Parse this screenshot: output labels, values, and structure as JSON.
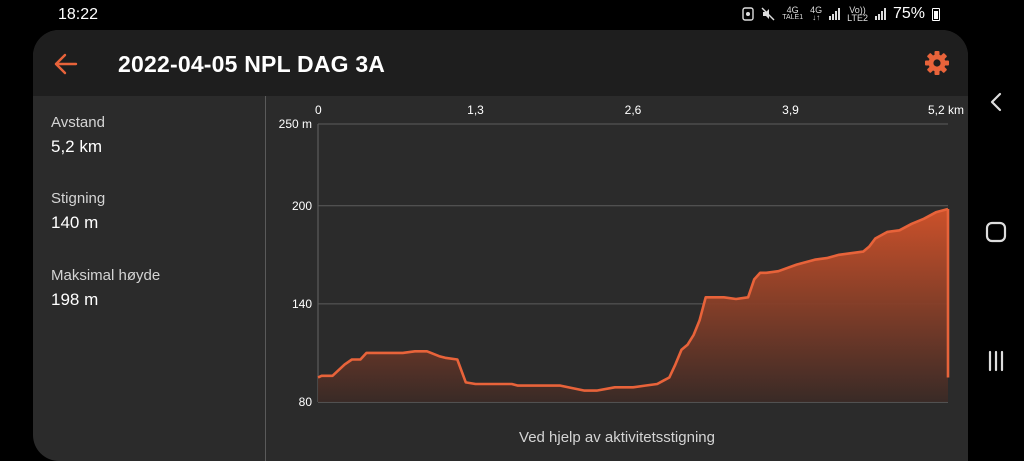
{
  "status_bar": {
    "time": "18:22",
    "net1": "4G",
    "net1_sub": "TALE1",
    "net2": "4G",
    "volte": "Vo))",
    "lte2": "LTE2",
    "battery_pct": "75%"
  },
  "app_bar": {
    "title": "2022-04-05 NPL DAG 3A",
    "back_icon": "arrow-left-icon",
    "settings_icon": "gear-icon",
    "accent_color": "#e8633a"
  },
  "stats": [
    {
      "label": "Avstand",
      "value": "5,2 km"
    },
    {
      "label": "Stigning",
      "value": "140 m"
    },
    {
      "label": "Maksimal høyde",
      "value": "198 m"
    }
  ],
  "chart_caption": "Ved hjelp av aktivitetsstigning",
  "chart_data": {
    "type": "area",
    "x_ticks": [
      "0",
      "1,3",
      "2,6",
      "3,9",
      "5,2 km"
    ],
    "x_tick_values": [
      0,
      1.3,
      2.6,
      3.9,
      5.2
    ],
    "y_ticks": [
      "250 m",
      "200",
      "140",
      "80"
    ],
    "y_tick_values": [
      250,
      200,
      140,
      80
    ],
    "xlim": [
      0,
      5.2
    ],
    "ylim": [
      80,
      250
    ],
    "grid": true,
    "line_color": "#e8633a",
    "x": [
      0,
      0.03,
      0.12,
      0.22,
      0.28,
      0.35,
      0.4,
      0.55,
      0.7,
      0.8,
      0.9,
      1.0,
      1.05,
      1.15,
      1.22,
      1.3,
      1.6,
      1.65,
      2.0,
      2.2,
      2.3,
      2.45,
      2.6,
      2.7,
      2.8,
      2.85,
      2.9,
      2.95,
      3.0,
      3.05,
      3.1,
      3.15,
      3.2,
      3.25,
      3.35,
      3.45,
      3.55,
      3.6,
      3.65,
      3.7,
      3.8,
      3.95,
      4.0,
      4.1,
      4.2,
      4.3,
      4.4,
      4.5,
      4.55,
      4.6,
      4.7,
      4.8,
      4.9,
      5.0,
      5.1,
      5.2
    ],
    "y": [
      95,
      96,
      96,
      103,
      106,
      106,
      110,
      110,
      110,
      111,
      111,
      108,
      107,
      106,
      92,
      91,
      91,
      90,
      90,
      87,
      87,
      89,
      89,
      90,
      91,
      93,
      95,
      103,
      112,
      115,
      121,
      130,
      144,
      144,
      144,
      143,
      144,
      155,
      159,
      159,
      160,
      164,
      165,
      167,
      168,
      170,
      171,
      172,
      175,
      180,
      184,
      185,
      189,
      192,
      196,
      198
    ]
  }
}
